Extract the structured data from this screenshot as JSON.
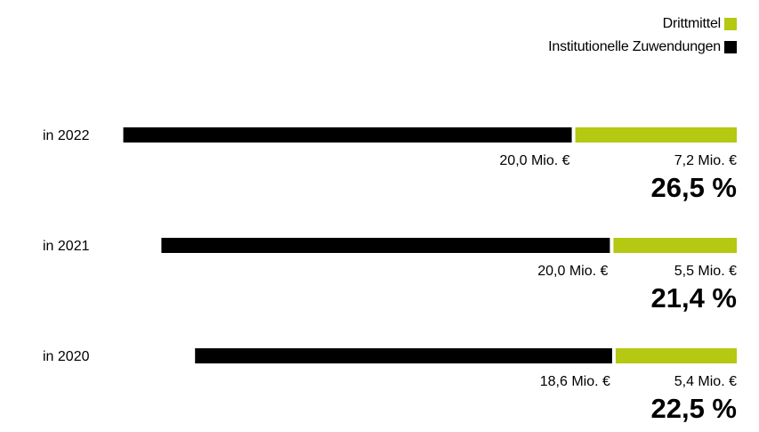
{
  "legend": [
    {
      "label": "Drittmittel",
      "color": "#b5c812"
    },
    {
      "label": "Institutionelle Zuwendungen",
      "color": "#000000"
    }
  ],
  "chart_data": {
    "type": "bar",
    "orientation": "horizontal",
    "stacked": true,
    "categories": [
      "in 2022",
      "in 2021",
      "in 2020"
    ],
    "series": [
      {
        "name": "Institutionelle Zuwendungen",
        "color": "#000000",
        "values": [
          20.0,
          20.0,
          18.6
        ],
        "labels": [
          "20,0 Mio. €",
          "20,0 Mio. €",
          "18,6 Mio. €"
        ]
      },
      {
        "name": "Drittmittel",
        "color": "#b5c812",
        "values": [
          7.2,
          5.5,
          5.4
        ],
        "labels": [
          "7,2 Mio. €",
          "5,5 Mio. €",
          "5,4 Mio. €"
        ]
      }
    ],
    "share_labels": [
      "26,5 %",
      "21,4 %",
      "22,5 %"
    ],
    "unit": "Mio. €",
    "axis": "hidden",
    "alignment": "right"
  }
}
